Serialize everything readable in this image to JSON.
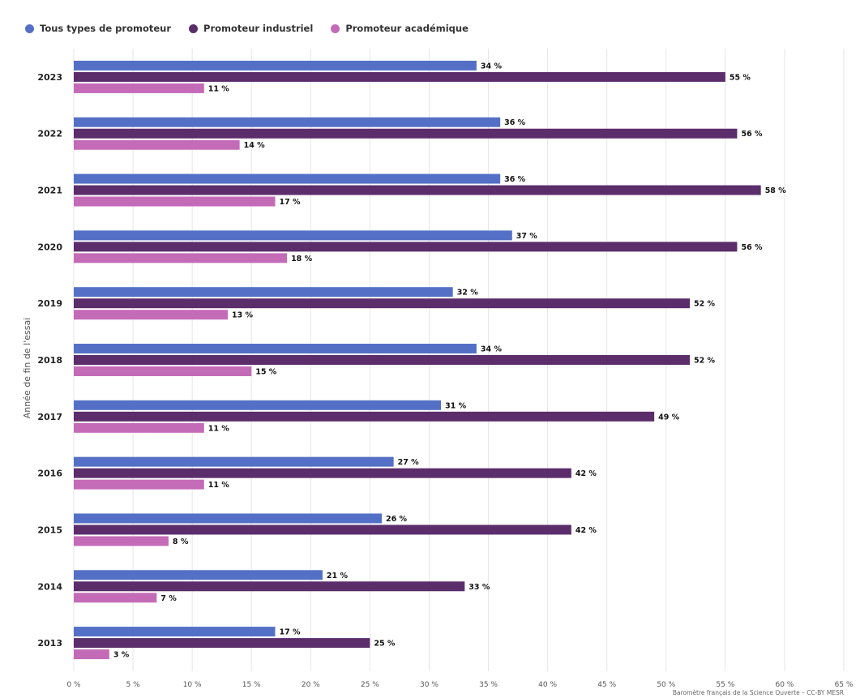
{
  "chart_data": {
    "type": "bar",
    "orientation": "horizontal",
    "categories": [
      "2023",
      "2022",
      "2021",
      "2020",
      "2019",
      "2018",
      "2017",
      "2016",
      "2015",
      "2014",
      "2013"
    ],
    "series": [
      {
        "name": "Tous types de promoteur",
        "color": "#5470c6",
        "values": [
          34,
          36,
          36,
          37,
          32,
          34,
          31,
          27,
          26,
          21,
          17
        ]
      },
      {
        "name": "Promoteur industriel",
        "color": "#5b2d6b",
        "values": [
          55,
          56,
          58,
          56,
          52,
          52,
          49,
          42,
          42,
          33,
          25
        ]
      },
      {
        "name": "Promoteur académique",
        "color": "#c46bb8",
        "values": [
          11,
          14,
          17,
          18,
          13,
          15,
          11,
          11,
          8,
          7,
          3
        ]
      }
    ],
    "xlim": [
      0,
      65
    ],
    "xticks": [
      0,
      5,
      10,
      15,
      20,
      25,
      30,
      35,
      40,
      45,
      50,
      55,
      60,
      65
    ],
    "tick_suffix": " %",
    "value_suffix": " %",
    "ylabel": "Année de fin de l'essai",
    "xlabel": "",
    "grid": true,
    "legend_position": "top-left"
  },
  "credit": "Baromètre français de la Science Ouverte – CC-BY MESR"
}
